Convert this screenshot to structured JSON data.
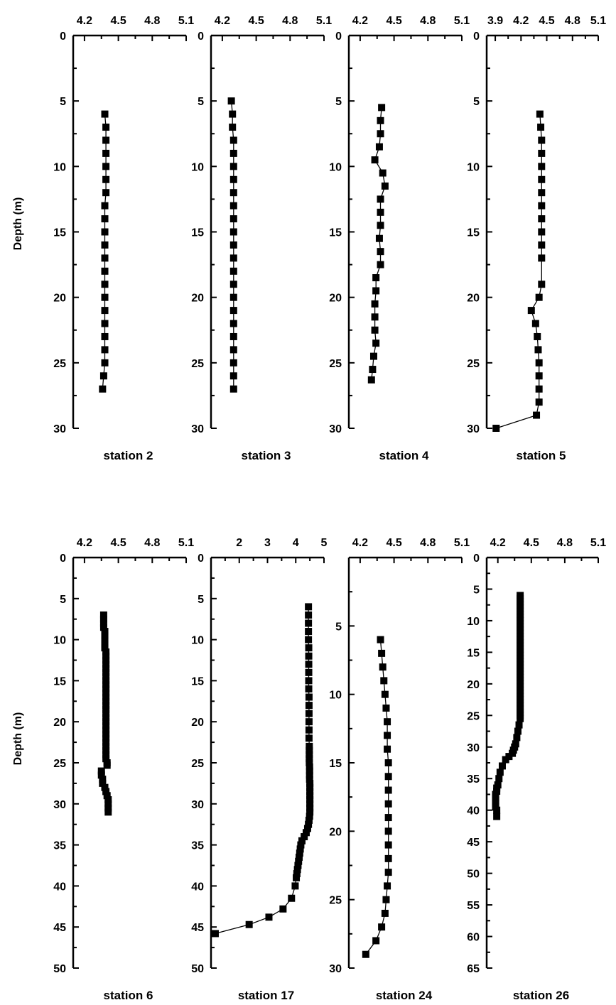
{
  "figure": {
    "ylabel": "Depth (m)"
  },
  "chart_data": [
    {
      "type": "scatter",
      "title": "station 2",
      "xlabel": "",
      "ylabel": "Depth (m)",
      "xlim": [
        4.1,
        5.1
      ],
      "ylim": [
        0,
        30
      ],
      "xticks": [
        "4.2",
        "4.5",
        "4.8",
        "5.1"
      ],
      "yticks": [
        "0",
        "5",
        "10",
        "15",
        "20",
        "25",
        "30"
      ],
      "series": [
        {
          "x": [
            4.38,
            4.39,
            4.39,
            4.39,
            4.39,
            4.39,
            4.39,
            4.38,
            4.38,
            4.38,
            4.38,
            4.38,
            4.38,
            4.38,
            4.38,
            4.38,
            4.38,
            4.38,
            4.38,
            4.38,
            4.37,
            4.36
          ],
          "y": [
            6,
            7,
            8,
            9,
            10,
            11,
            12,
            13,
            14,
            15,
            16,
            17,
            18,
            19,
            20,
            21,
            22,
            23,
            24,
            25,
            26,
            27
          ]
        }
      ]
    },
    {
      "type": "scatter",
      "title": "station 3",
      "xlabel": "",
      "ylabel": "",
      "xlim": [
        4.1,
        5.1
      ],
      "ylim": [
        0,
        30
      ],
      "xticks": [
        "4.2",
        "4.5",
        "4.8",
        "5.1"
      ],
      "yticks": [
        "0",
        "5",
        "10",
        "15",
        "20",
        "25",
        "30"
      ],
      "series": [
        {
          "x": [
            4.28,
            4.29,
            4.29,
            4.3,
            4.3,
            4.3,
            4.3,
            4.3,
            4.3,
            4.3,
            4.3,
            4.3,
            4.3,
            4.3,
            4.3,
            4.3,
            4.3,
            4.3,
            4.3,
            4.3,
            4.3,
            4.3,
            4.3
          ],
          "y": [
            5,
            6,
            7,
            8,
            9,
            10,
            11,
            12,
            13,
            14,
            15,
            16,
            17,
            18,
            19,
            20,
            21,
            22,
            23,
            24,
            25,
            26,
            27
          ]
        }
      ]
    },
    {
      "type": "scatter",
      "title": "station 4",
      "xlabel": "",
      "ylabel": "",
      "xlim": [
        4.1,
        5.1
      ],
      "ylim": [
        0,
        30
      ],
      "xticks": [
        "4.2",
        "4.5",
        "4.8",
        "5.1"
      ],
      "yticks": [
        "0",
        "5",
        "10",
        "15",
        "20",
        "25",
        "30"
      ],
      "series": [
        {
          "x": [
            4.39,
            4.38,
            4.38,
            4.37,
            4.33,
            4.4,
            4.42,
            4.38,
            4.38,
            4.38,
            4.37,
            4.38,
            4.38,
            4.34,
            4.34,
            4.33,
            4.33,
            4.33,
            4.34,
            4.32,
            4.31,
            4.3
          ],
          "y": [
            5.5,
            6.5,
            7.5,
            8.5,
            9.5,
            10.5,
            11.5,
            12.5,
            13.5,
            14.5,
            15.5,
            16.5,
            17.5,
            18.5,
            19.5,
            20.5,
            21.5,
            22.5,
            23.5,
            24.5,
            25.5,
            26.3
          ]
        }
      ]
    },
    {
      "type": "scatter",
      "title": "station 5",
      "xlabel": "",
      "ylabel": "",
      "xlim": [
        3.8,
        5.1
      ],
      "ylim": [
        0,
        30
      ],
      "xticks": [
        "3.9",
        "4.2",
        "4.5",
        "4.8",
        "5.1"
      ],
      "yticks": [
        "0",
        "5",
        "10",
        "15",
        "20",
        "25",
        "30"
      ],
      "series": [
        {
          "x": [
            4.42,
            4.43,
            4.44,
            4.44,
            4.44,
            4.44,
            4.44,
            4.44,
            4.44,
            4.44,
            4.44,
            4.44,
            4.44,
            4.41,
            4.32,
            4.37,
            4.39,
            4.4,
            4.41,
            4.41,
            4.41,
            4.41,
            4.38,
            3.91
          ],
          "y": [
            6,
            7,
            8,
            9,
            10,
            11,
            12,
            13,
            14,
            15,
            16,
            17,
            19,
            20,
            21,
            22,
            23,
            24,
            25,
            26,
            27,
            28,
            29,
            30
          ]
        }
      ]
    },
    {
      "type": "scatter",
      "title": "station 6",
      "xlabel": "",
      "ylabel": "Depth (m)",
      "xlim": [
        4.1,
        5.1
      ],
      "ylim": [
        0,
        50
      ],
      "xticks": [
        "4.2",
        "4.5",
        "4.8",
        "5.1"
      ],
      "yticks": [
        "0",
        "5",
        "10",
        "15",
        "20",
        "25",
        "30",
        "35",
        "40",
        "45",
        "50"
      ],
      "series": [
        {
          "x": [
            4.37,
            4.37,
            4.37,
            4.37,
            4.38,
            4.38,
            4.38,
            4.38,
            4.38,
            4.39,
            4.39,
            4.39,
            4.39,
            4.39,
            4.39,
            4.39,
            4.39,
            4.39,
            4.39,
            4.39,
            4.39,
            4.39,
            4.39,
            4.39,
            4.39,
            4.39,
            4.39,
            4.39,
            4.39,
            4.39,
            4.39,
            4.39,
            4.39,
            4.39,
            4.39,
            4.39,
            4.4,
            4.4,
            4.35,
            4.35,
            4.36,
            4.36,
            4.38,
            4.39,
            4.4,
            4.41,
            4.41,
            4.41,
            4.41
          ],
          "y": [
            7,
            7.5,
            8,
            8.5,
            9,
            9.5,
            10,
            10.5,
            11,
            11.5,
            12,
            12.5,
            13,
            13.5,
            14,
            14.5,
            15,
            15.5,
            16,
            16.5,
            17,
            17.5,
            18,
            18.5,
            19,
            19.5,
            20,
            20.5,
            21,
            21.5,
            22,
            22.5,
            23,
            23.5,
            24,
            24.5,
            25,
            25.3,
            26,
            26.5,
            27,
            27.5,
            28,
            28.5,
            29,
            29.5,
            30,
            30.5,
            31
          ]
        }
      ]
    },
    {
      "type": "scatter",
      "title": "station 17",
      "xlabel": "",
      "ylabel": "",
      "xlim": [
        1,
        5
      ],
      "ylim": [
        0,
        50
      ],
      "xticks": [
        "2",
        "3",
        "4",
        "5"
      ],
      "yticks": [
        "0",
        "5",
        "10",
        "15",
        "20",
        "25",
        "30",
        "35",
        "40",
        "45",
        "50"
      ],
      "series": [
        {
          "x": [
            4.45,
            4.45,
            4.45,
            4.45,
            4.45,
            4.46,
            4.46,
            4.46,
            4.46,
            4.46,
            4.46,
            4.47,
            4.47,
            4.47,
            4.47,
            4.47,
            4.47,
            4.48,
            4.48,
            4.48,
            4.48,
            4.48,
            4.49,
            4.49,
            4.49,
            4.49,
            4.5,
            4.5,
            4.5,
            4.5,
            4.5,
            4.5,
            4.5,
            4.5,
            4.49,
            4.47,
            4.45,
            4.42,
            4.37,
            4.3,
            4.22,
            4.18,
            4.16,
            4.14,
            4.12,
            4.1,
            4.08,
            4.06,
            4.04,
            4.02,
            3.98,
            3.85,
            3.55,
            3.05,
            2.35,
            1.15
          ],
          "y": [
            6,
            7,
            8,
            9,
            10,
            11,
            12,
            13,
            14,
            15,
            16,
            17,
            18,
            19,
            20,
            21,
            22,
            23,
            23.5,
            24,
            24.5,
            25,
            25.5,
            26,
            26.5,
            27,
            27.5,
            28,
            28.5,
            29,
            29.5,
            30,
            30.5,
            31,
            31.5,
            32,
            32.5,
            33,
            33.5,
            34,
            34.5,
            35,
            35.5,
            36,
            36.5,
            37,
            37.5,
            38,
            38.5,
            39,
            40,
            41.5,
            42.8,
            43.8,
            44.7,
            45.8
          ]
        }
      ]
    },
    {
      "type": "scatter",
      "title": "station 24",
      "xlabel": "",
      "ylabel": "",
      "xlim": [
        4.1,
        5.1
      ],
      "ylim": [
        0,
        30
      ],
      "xticks": [
        "4.2",
        "4.5",
        "4.8",
        "5.1"
      ],
      "yticks": [
        "5",
        "10",
        "15",
        "20",
        "25",
        "30"
      ],
      "series": [
        {
          "x": [
            4.38,
            4.39,
            4.4,
            4.41,
            4.42,
            4.43,
            4.44,
            4.44,
            4.44,
            4.45,
            4.45,
            4.45,
            4.45,
            4.45,
            4.45,
            4.45,
            4.45,
            4.45,
            4.44,
            4.43,
            4.42,
            4.39,
            4.34,
            4.25
          ],
          "y": [
            6,
            7,
            8,
            9,
            10,
            11,
            12,
            13,
            14,
            15,
            16,
            17,
            18,
            19,
            20,
            21,
            22,
            23,
            24,
            25,
            26,
            27,
            28,
            29
          ]
        }
      ]
    },
    {
      "type": "scatter",
      "title": "station 26",
      "xlabel": "",
      "ylabel": "",
      "xlim": [
        4.1,
        5.1
      ],
      "ylim": [
        0,
        65
      ],
      "xticks": [
        "4.2",
        "4.5",
        "4.8",
        "5.1"
      ],
      "yticks": [
        "0",
        "5",
        "10",
        "15",
        "20",
        "25",
        "30",
        "35",
        "40",
        "45",
        "50",
        "55",
        "60",
        "65"
      ],
      "series": [
        {
          "x": [
            4.4,
            4.4,
            4.4,
            4.4,
            4.4,
            4.4,
            4.4,
            4.4,
            4.4,
            4.4,
            4.4,
            4.4,
            4.4,
            4.4,
            4.4,
            4.4,
            4.4,
            4.4,
            4.4,
            4.4,
            4.4,
            4.4,
            4.4,
            4.4,
            4.4,
            4.4,
            4.4,
            4.4,
            4.4,
            4.4,
            4.4,
            4.4,
            4.4,
            4.4,
            4.4,
            4.4,
            4.4,
            4.4,
            4.4,
            4.4,
            4.39,
            4.38,
            4.37,
            4.36,
            4.35,
            4.34,
            4.33,
            4.3,
            4.27,
            4.24,
            4.22,
            4.21,
            4.2,
            4.19,
            4.19,
            4.18,
            4.18,
            4.18,
            4.18,
            4.18,
            4.19,
            4.19
          ],
          "y": [
            6,
            6.5,
            7,
            7.5,
            8,
            8.5,
            9,
            9.5,
            10,
            10.5,
            11,
            11.5,
            12,
            12.5,
            13,
            13.5,
            14,
            14.5,
            15,
            15.5,
            16,
            16.5,
            17,
            17.5,
            18,
            18.5,
            19,
            19.5,
            20,
            20.5,
            21,
            21.5,
            22,
            22.5,
            23,
            23.5,
            24,
            24.5,
            25,
            25.5,
            26.5,
            27.5,
            28.5,
            29.5,
            30,
            30.5,
            31,
            31.5,
            32,
            33,
            34,
            35,
            36,
            36.5,
            37,
            37.5,
            38,
            38.5,
            39,
            39.5,
            40,
            41
          ]
        }
      ]
    }
  ]
}
